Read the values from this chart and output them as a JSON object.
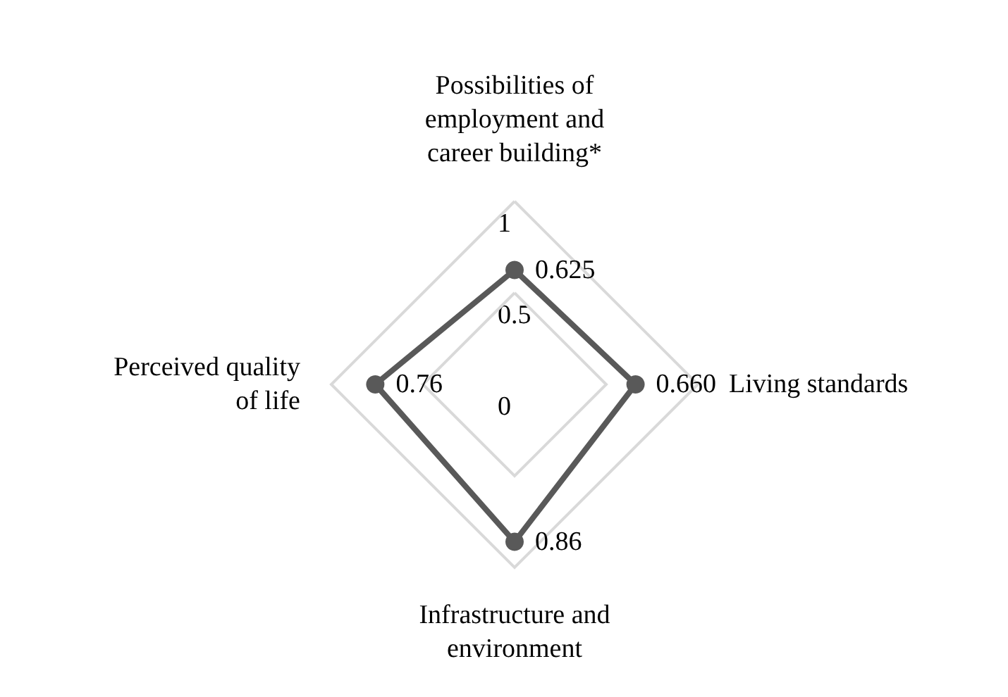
{
  "chart_data": {
    "type": "radar",
    "categories": [
      "Possibilities of\nemployment and\ncareer building*",
      "Living standards",
      "Infrastructure and\nenvironment",
      "Perceived quality\nof life"
    ],
    "series": [
      {
        "color": "#595959",
        "values": [
          0.625,
          0.66,
          0.86,
          0.76
        ],
        "value_labels": [
          "0.625",
          "0.660",
          "0.86",
          "0.76"
        ]
      }
    ],
    "ylim": [
      0,
      1
    ],
    "yticks": [
      0,
      0.5,
      1
    ],
    "grid": true,
    "marker": "circle"
  }
}
